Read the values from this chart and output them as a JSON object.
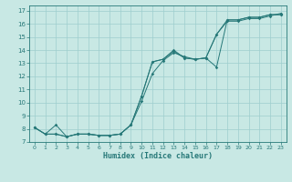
{
  "xlabel": "Humidex (Indice chaleur)",
  "ylabel": "",
  "background_color": "#c8e8e4",
  "grid_color": "#9ecece",
  "line_color": "#267878",
  "xlim": [
    -0.5,
    23.5
  ],
  "ylim": [
    7,
    17.4
  ],
  "xticks": [
    0,
    1,
    2,
    3,
    4,
    5,
    6,
    7,
    8,
    9,
    10,
    11,
    12,
    13,
    14,
    15,
    16,
    17,
    18,
    19,
    20,
    21,
    22,
    23
  ],
  "yticks": [
    7,
    8,
    9,
    10,
    11,
    12,
    13,
    14,
    15,
    16,
    17
  ],
  "line1_x": [
    0,
    1,
    2,
    3,
    4,
    5,
    6,
    7,
    8,
    9,
    10,
    11,
    12,
    13,
    14,
    15,
    16,
    17,
    18,
    19,
    20,
    21,
    22,
    23
  ],
  "line1_y": [
    8.1,
    7.6,
    7.6,
    7.4,
    7.6,
    7.6,
    7.5,
    7.5,
    7.6,
    8.3,
    10.1,
    12.2,
    13.2,
    13.8,
    13.5,
    13.3,
    13.4,
    15.2,
    16.2,
    16.2,
    16.4,
    16.4,
    16.6,
    16.8
  ],
  "line2_x": [
    0,
    1,
    2,
    3,
    4,
    5,
    6,
    7,
    8,
    9,
    10,
    11,
    12,
    13,
    14,
    15,
    16,
    17,
    18,
    19,
    20,
    21,
    22,
    23
  ],
  "line2_y": [
    8.1,
    7.6,
    7.6,
    7.4,
    7.6,
    7.6,
    7.5,
    7.5,
    7.6,
    8.3,
    10.5,
    13.1,
    13.3,
    13.9,
    13.4,
    13.3,
    13.4,
    12.7,
    16.3,
    16.3,
    16.5,
    16.5,
    16.7,
    16.7
  ],
  "line3_x": [
    0,
    1,
    2,
    3,
    4,
    5,
    6,
    7,
    8,
    9,
    10,
    11,
    12,
    13,
    14,
    15,
    16,
    17,
    18,
    19,
    20,
    21,
    22,
    23
  ],
  "line3_y": [
    8.1,
    7.6,
    8.3,
    7.4,
    7.6,
    7.6,
    7.5,
    7.5,
    7.6,
    8.3,
    10.5,
    13.1,
    13.3,
    14.0,
    13.4,
    13.3,
    13.4,
    15.2,
    16.3,
    16.3,
    16.5,
    16.5,
    16.7,
    16.7
  ],
  "xlabel_fontsize": 6,
  "tick_fontsize": 4.5,
  "linewidth": 0.7,
  "markersize": 1.8
}
